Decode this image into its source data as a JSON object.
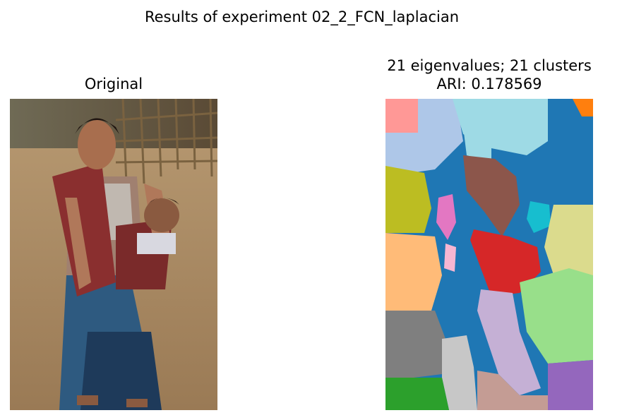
{
  "figure": {
    "suptitle": "Results of experiment 02_2_FCN_laplacian"
  },
  "left_panel": {
    "title": "Original",
    "image_description_icon": "photo-woman-carrying-baby"
  },
  "right_panel": {
    "title_line1": "21 eigenvalues; 21 clusters",
    "title_line2": "ARI: 0.178569",
    "image_description_icon": "segmentation-cluster-map",
    "cluster_colors": [
      "#1f77b4",
      "#aec7e8",
      "#ff7f0e",
      "#ff9896",
      "#98df8a",
      "#2ca02c",
      "#d62728",
      "#9edae5",
      "#17becf",
      "#bcbd22",
      "#dbdb8d",
      "#8c564b",
      "#c49c94",
      "#e377c2",
      "#f7b6d2",
      "#7f7f7f",
      "#c7c7c7",
      "#9467bd",
      "#c5b0d5",
      "#ffbb78"
    ]
  }
}
